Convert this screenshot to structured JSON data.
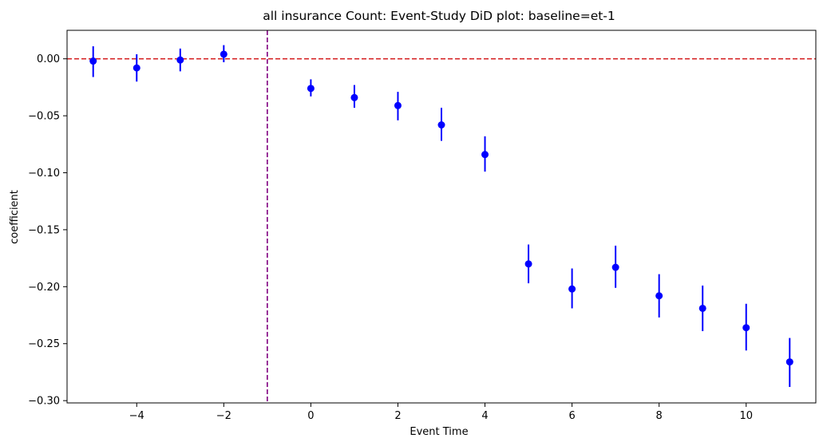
{
  "chart_data": {
    "type": "scatter",
    "title": "all insurance Count: Event-Study DiD plot: baseline=et-1",
    "xlabel": "Event Time",
    "ylabel": "coefficient",
    "xlim": [
      -5.6,
      11.6
    ],
    "ylim": [
      -0.302,
      0.025
    ],
    "xticks": [
      -4,
      -2,
      0,
      2,
      4,
      6,
      8,
      10
    ],
    "xtick_labels": [
      "−4",
      "−2",
      "0",
      "2",
      "4",
      "6",
      "8",
      "10"
    ],
    "yticks": [
      0.0,
      -0.05,
      -0.1,
      -0.15,
      -0.2,
      -0.25,
      -0.3
    ],
    "ytick_labels": [
      "0.00",
      "−0.05",
      "−0.10",
      "−0.15",
      "−0.20",
      "−0.25",
      "−0.30"
    ],
    "grid": false,
    "reference_lines": {
      "horizontal": {
        "y": 0.0,
        "color": "#d62728",
        "style": "dashed"
      },
      "vertical": {
        "x": -1,
        "color": "#800080",
        "style": "dashed"
      }
    },
    "point_color": "#0000ff",
    "points": [
      {
        "x": -5,
        "y": -0.002,
        "lo": -0.016,
        "hi": 0.011
      },
      {
        "x": -4,
        "y": -0.008,
        "lo": -0.02,
        "hi": 0.004
      },
      {
        "x": -3,
        "y": -0.001,
        "lo": -0.011,
        "hi": 0.009
      },
      {
        "x": -2,
        "y": 0.004,
        "lo": -0.003,
        "hi": 0.012
      },
      {
        "x": 0,
        "y": -0.026,
        "lo": -0.033,
        "hi": -0.018
      },
      {
        "x": 1,
        "y": -0.034,
        "lo": -0.043,
        "hi": -0.023
      },
      {
        "x": 2,
        "y": -0.041,
        "lo": -0.054,
        "hi": -0.029
      },
      {
        "x": 3,
        "y": -0.058,
        "lo": -0.072,
        "hi": -0.043
      },
      {
        "x": 4,
        "y": -0.084,
        "lo": -0.099,
        "hi": -0.068
      },
      {
        "x": 5,
        "y": -0.18,
        "lo": -0.197,
        "hi": -0.163
      },
      {
        "x": 6,
        "y": -0.202,
        "lo": -0.219,
        "hi": -0.184
      },
      {
        "x": 7,
        "y": -0.183,
        "lo": -0.201,
        "hi": -0.164
      },
      {
        "x": 8,
        "y": -0.208,
        "lo": -0.227,
        "hi": -0.189
      },
      {
        "x": 9,
        "y": -0.219,
        "lo": -0.239,
        "hi": -0.199
      },
      {
        "x": 10,
        "y": -0.236,
        "lo": -0.256,
        "hi": -0.215
      },
      {
        "x": 11,
        "y": -0.266,
        "lo": -0.288,
        "hi": -0.245
      }
    ]
  }
}
